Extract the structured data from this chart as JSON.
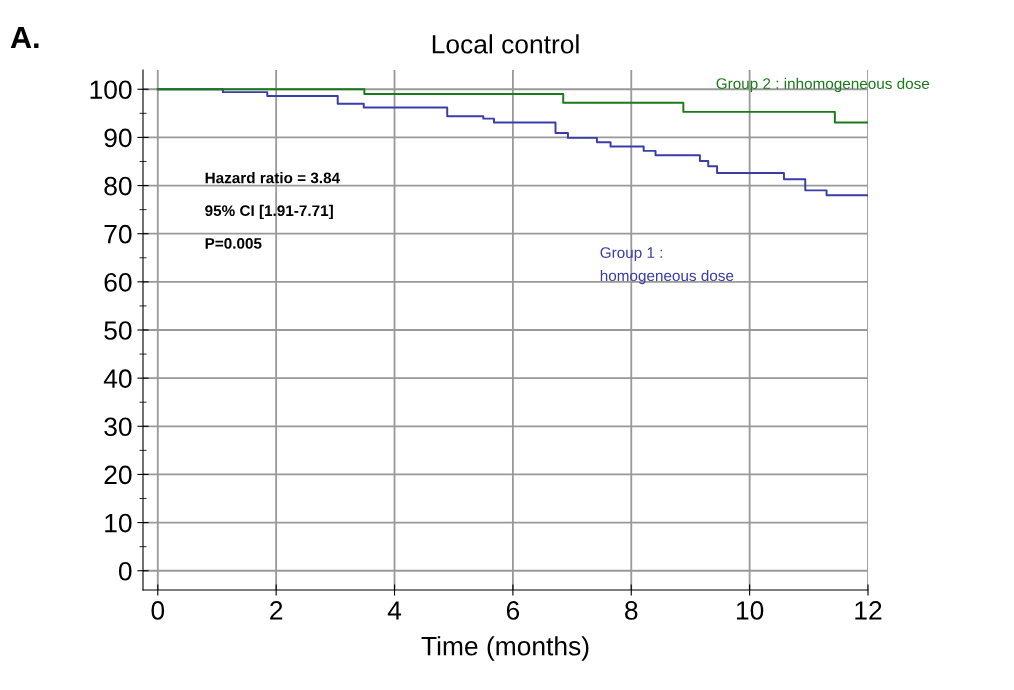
{
  "chart_data": {
    "type": "step",
    "title": "Local control",
    "xlabel": "Time (months)",
    "xlim": [
      -0.25,
      12
    ],
    "ylim": [
      -4,
      104
    ],
    "xticks": [
      0,
      2,
      4,
      6,
      8,
      10,
      12
    ],
    "yticks": [
      0,
      {
        "value": 5,
        "label": null
      },
      10,
      {
        "value": 15,
        "label": null
      },
      20,
      {
        "value": 25,
        "label": null
      },
      30,
      {
        "value": 35,
        "label": null
      },
      40,
      {
        "value": 45,
        "label": null
      },
      50,
      {
        "value": 55,
        "label": null
      },
      60,
      {
        "value": 65,
        "label": null
      },
      70,
      {
        "value": 75,
        "label": null
      },
      80,
      {
        "value": 85,
        "label": null
      },
      90,
      {
        "value": 95,
        "label": null
      },
      100
    ],
    "grid": true,
    "legend": false,
    "series": [
      {
        "name": "Group 1 :\nhomogeneous dose",
        "color": "#3a3ca8",
        "x": [
          0,
          1.1,
          1.85,
          3.04,
          3.48,
          4.89,
          5.5,
          5.68,
          6.72,
          6.93,
          7.42,
          7.65,
          8.21,
          8.41,
          9.16,
          9.3,
          9.45,
          10.58,
          10.94,
          11.3,
          12
        ],
        "values": [
          100,
          99.4,
          98.6,
          97.0,
          96.2,
          94.4,
          93.9,
          93.1,
          90.9,
          89.9,
          89.0,
          88.1,
          87.2,
          86.3,
          85.1,
          84.0,
          82.6,
          81.3,
          79.0,
          78.0,
          78.0
        ]
      },
      {
        "name": "Group 2 : inhomogeneous dose",
        "color": "#1a7a1a",
        "x": [
          0,
          3.49,
          6.85,
          8.88,
          11.44,
          12
        ],
        "values": [
          100,
          99.0,
          97.2,
          95.3,
          93.1,
          93.1
        ]
      }
    ],
    "annotations": [
      "A.",
      "Hazard ratio = 3.84",
      "95% CI [1.91-7.71]",
      "P=0.005"
    ]
  }
}
